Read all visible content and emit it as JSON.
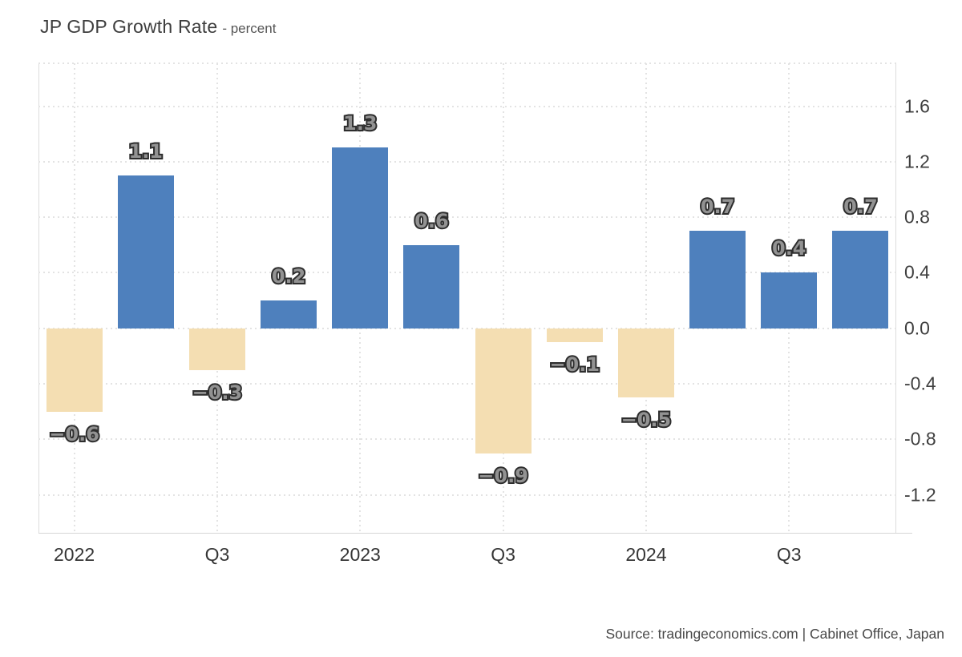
{
  "header": {
    "title": "JP GDP Growth Rate",
    "subtitle": "- percent"
  },
  "footer": {
    "source": "Source: tradingeconomics.com | Cabinet Office, Japan"
  },
  "chart_data": {
    "type": "bar",
    "title": "JP GDP Growth Rate",
    "unit": "percent",
    "values": [
      -0.6,
      1.1,
      -0.3,
      0.2,
      1.3,
      0.6,
      -0.9,
      -0.1,
      -0.5,
      0.7,
      0.4,
      0.7
    ],
    "bar_labels": [
      "-0.6",
      "1.1",
      "-0.3",
      "0.2",
      "1.3",
      "0.6",
      "-0.9",
      "-0.1",
      "-0.5",
      "0.7",
      "0.4",
      "0.7"
    ],
    "x_tick_labels": [
      "2022",
      "Q3",
      "2023",
      "Q3",
      "2024",
      "Q3"
    ],
    "x_tick_bar_indices": [
      0,
      2,
      4,
      6,
      8,
      10
    ],
    "y_tick_values": [
      1.6,
      1.2,
      0.8,
      0.4,
      0.0,
      -0.4,
      -0.8,
      -1.2
    ],
    "y_tick_labels": [
      "1.6",
      "1.2",
      "0.8",
      "0.4",
      "0.0",
      "-0.4",
      "-0.8",
      "-1.2"
    ],
    "ylim": [
      -1.474,
      1.909
    ],
    "grid": "dotted",
    "legend": "none",
    "positive_color": "#4e80bd",
    "negative_color": "#f4deb2",
    "value_label_fill": "#929292",
    "value_label_stroke": "#2d2d2d"
  }
}
